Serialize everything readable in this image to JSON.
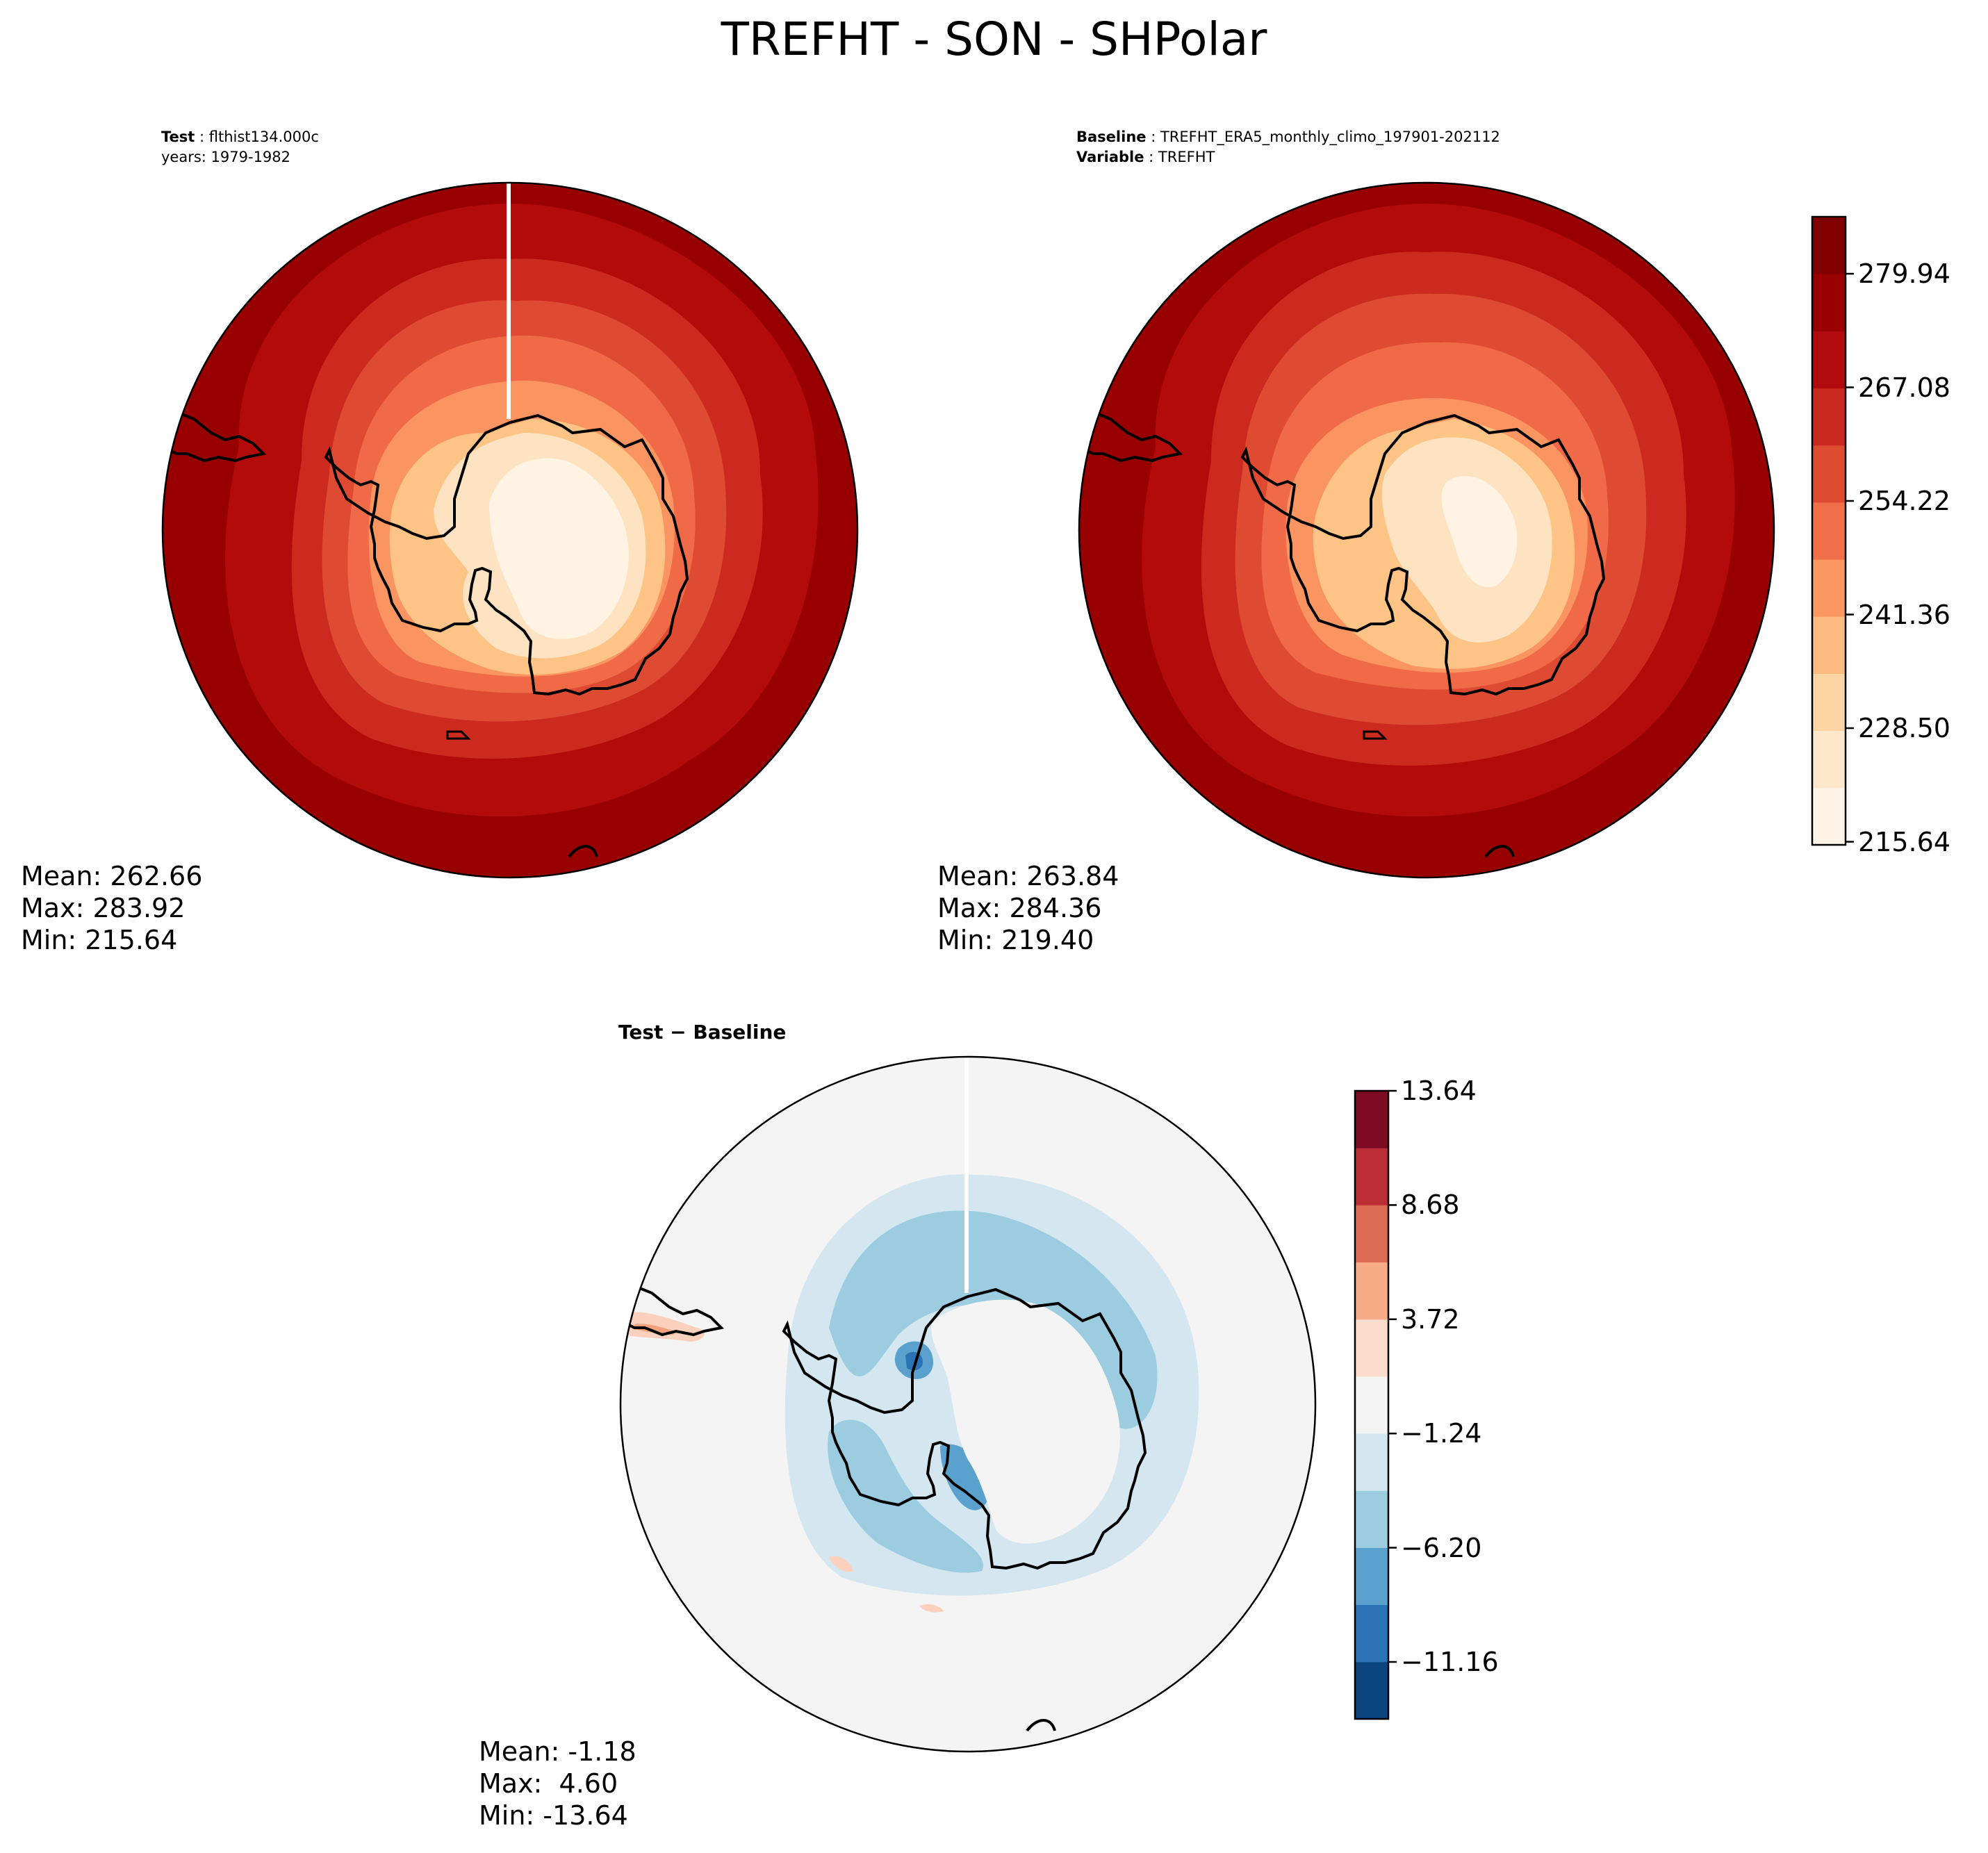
{
  "title": "TREFHT - SON - SHPolar",
  "panels": {
    "test": {
      "label": "Test",
      "value": "flthist134.000c",
      "years": "years: 1979-1982",
      "stats": {
        "mean": "Mean: 262.66",
        "max": "Max: 283.92",
        "min": "Min: 215.64"
      }
    },
    "baseline": {
      "label": "Baseline",
      "value": "TREFHT_ERA5_monthly_climo_197901-202112",
      "variable_label": "Variable",
      "variable_value": "TREFHT",
      "stats": {
        "mean": "Mean: 263.84",
        "max": "Max: 284.36",
        "min": "Min: 219.40"
      }
    },
    "diff": {
      "title": "Test − Baseline",
      "stats": {
        "mean": "Mean: -1.18",
        "max": "Max:  4.60",
        "min": "Min: -13.64"
      }
    }
  },
  "colorbars": {
    "main": {
      "ticks": [
        "279.94",
        "267.08",
        "254.22",
        "241.36",
        "228.50",
        "215.64"
      ],
      "colors": [
        "#fff4e6",
        "#fee7cb",
        "#fdd4a4",
        "#fcbb81",
        "#fb9862",
        "#f16f48",
        "#de4b33",
        "#c9291f",
        "#b10a0c",
        "#9b0000",
        "#800000"
      ]
    },
    "diff": {
      "ticks": [
        "13.64",
        "8.68",
        "3.72",
        "−1.24",
        "−6.20",
        "−11.16"
      ],
      "colors": [
        "#0c447f",
        "#2a72b4",
        "#5aa2cd",
        "#9cccdf",
        "#d4e6f0",
        "#f4f4f4",
        "#fbdccc",
        "#f6ac86",
        "#dd6b55",
        "#bc2e35",
        "#7d0b23"
      ]
    }
  },
  "map_colors": {
    "outer": "#980000",
    "ring1": "#b30a0a",
    "ring2": "#cc2a1e",
    "ring3": "#df4a32",
    "ring4": "#f06a48",
    "ring5": "#fa9460",
    "ice1": "#fdc486",
    "ice2": "#fee3c2",
    "ice3": "#fff3e4",
    "coast": "#000000",
    "diff_bg": "#f4f4f4",
    "diff_ring1": "#d4e6f0",
    "diff_ring2": "#9cccdf",
    "diff_ring3": "#5aa2cd",
    "diff_dark": "#2a72b4",
    "diff_warm": "#fbd0bc",
    "diff_warm2": "#f2a07e"
  }
}
